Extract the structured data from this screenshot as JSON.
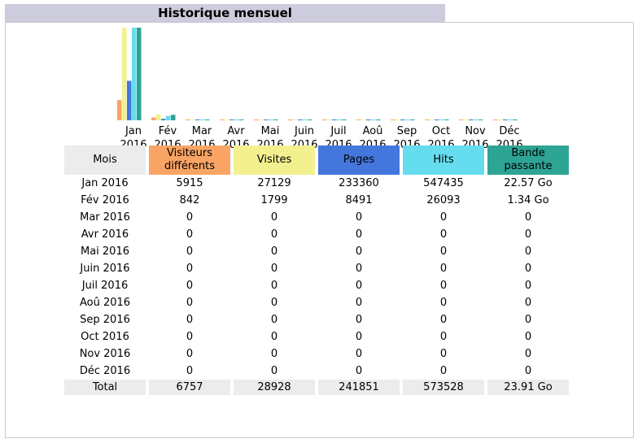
{
  "title": "Historique mensuel",
  "colors": {
    "visitors": "#f9a464",
    "visits": "#f3f18f",
    "pages": "#4477dd",
    "hits": "#66ddee",
    "bandwidth": "#2ea495"
  },
  "chart_data": {
    "type": "bar",
    "categories": [
      "Jan 2016",
      "Fév 2016",
      "Mar 2016",
      "Avr 2016",
      "Mai 2016",
      "Juin 2016",
      "Juil 2016",
      "Aoû 2016",
      "Sep 2016",
      "Oct 2016",
      "Nov 2016",
      "Déc 2016"
    ],
    "series": [
      {
        "name": "Visiteurs différents",
        "values": [
          5915,
          842,
          0,
          0,
          0,
          0,
          0,
          0,
          0,
          0,
          0,
          0
        ]
      },
      {
        "name": "Visites",
        "values": [
          27129,
          1799,
          0,
          0,
          0,
          0,
          0,
          0,
          0,
          0,
          0,
          0
        ]
      },
      {
        "name": "Pages",
        "values": [
          233360,
          8491,
          0,
          0,
          0,
          0,
          0,
          0,
          0,
          0,
          0,
          0
        ]
      },
      {
        "name": "Hits",
        "values": [
          547435,
          26093,
          0,
          0,
          0,
          0,
          0,
          0,
          0,
          0,
          0,
          0
        ]
      },
      {
        "name": "Bande passante",
        "values": [
          22.57,
          1.34,
          0,
          0,
          0,
          0,
          0,
          0,
          0,
          0,
          0,
          0
        ]
      }
    ]
  },
  "months": [
    {
      "line1": "Jan",
      "line2": "2016"
    },
    {
      "line1": "Fév",
      "line2": "2016"
    },
    {
      "line1": "Mar",
      "line2": "2016"
    },
    {
      "line1": "Avr",
      "line2": "2016"
    },
    {
      "line1": "Mai",
      "line2": "2016"
    },
    {
      "line1": "Juin",
      "line2": "2016"
    },
    {
      "line1": "Juil",
      "line2": "2016"
    },
    {
      "line1": "Aoû",
      "line2": "2016"
    },
    {
      "line1": "Sep",
      "line2": "2016"
    },
    {
      "line1": "Oct",
      "line2": "2016"
    },
    {
      "line1": "Nov",
      "line2": "2016"
    },
    {
      "line1": "Déc",
      "line2": "2016"
    }
  ],
  "table": {
    "headers": {
      "mois": "Mois",
      "visitors": "Visiteurs différents",
      "visits": "Visites",
      "pages": "Pages",
      "hits": "Hits",
      "bandwidth": "Bande passante"
    },
    "rows": [
      {
        "month": "Jan 2016",
        "visitors": "5915",
        "visits": "27129",
        "pages": "233360",
        "hits": "547435",
        "bandwidth": "22.57 Go"
      },
      {
        "month": "Fév 2016",
        "visitors": "842",
        "visits": "1799",
        "pages": "8491",
        "hits": "26093",
        "bandwidth": "1.34 Go"
      },
      {
        "month": "Mar 2016",
        "visitors": "0",
        "visits": "0",
        "pages": "0",
        "hits": "0",
        "bandwidth": "0"
      },
      {
        "month": "Avr 2016",
        "visitors": "0",
        "visits": "0",
        "pages": "0",
        "hits": "0",
        "bandwidth": "0"
      },
      {
        "month": "Mai 2016",
        "visitors": "0",
        "visits": "0",
        "pages": "0",
        "hits": "0",
        "bandwidth": "0"
      },
      {
        "month": "Juin 2016",
        "visitors": "0",
        "visits": "0",
        "pages": "0",
        "hits": "0",
        "bandwidth": "0"
      },
      {
        "month": "Juil 2016",
        "visitors": "0",
        "visits": "0",
        "pages": "0",
        "hits": "0",
        "bandwidth": "0"
      },
      {
        "month": "Aoû 2016",
        "visitors": "0",
        "visits": "0",
        "pages": "0",
        "hits": "0",
        "bandwidth": "0"
      },
      {
        "month": "Sep 2016",
        "visitors": "0",
        "visits": "0",
        "pages": "0",
        "hits": "0",
        "bandwidth": "0"
      },
      {
        "month": "Oct 2016",
        "visitors": "0",
        "visits": "0",
        "pages": "0",
        "hits": "0",
        "bandwidth": "0"
      },
      {
        "month": "Nov 2016",
        "visitors": "0",
        "visits": "0",
        "pages": "0",
        "hits": "0",
        "bandwidth": "0"
      },
      {
        "month": "Déc 2016",
        "visitors": "0",
        "visits": "0",
        "pages": "0",
        "hits": "0",
        "bandwidth": "0"
      }
    ],
    "total": {
      "month": "Total",
      "visitors": "6757",
      "visits": "28928",
      "pages": "241851",
      "hits": "573528",
      "bandwidth": "23.91 Go"
    }
  }
}
